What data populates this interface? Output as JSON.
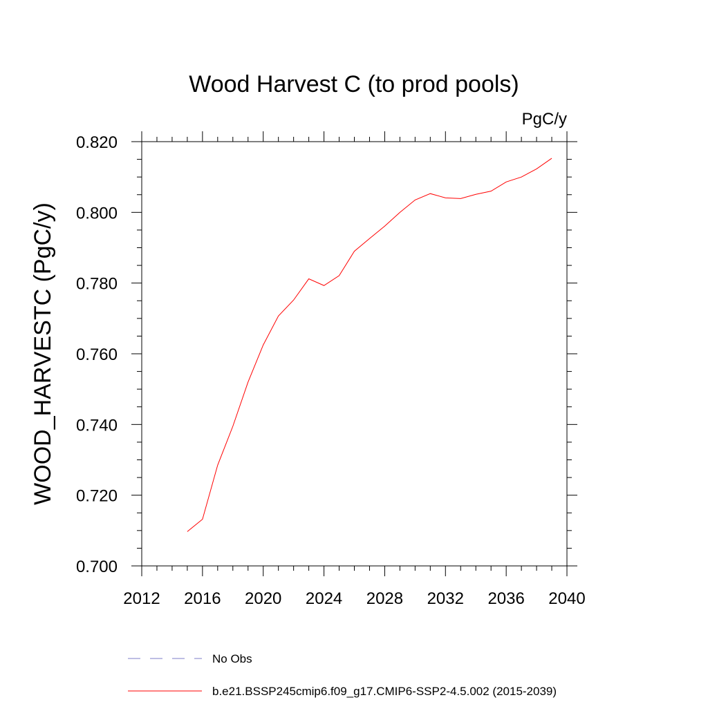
{
  "chart_data": {
    "type": "line",
    "title": "Wood Harvest C (to prod pools)",
    "units": "PgC/y",
    "ylabel": "WOOD_HARVESTC  (PgC/y)",
    "xlabel": "",
    "xlim": [
      2012,
      2040
    ],
    "ylim": [
      0.7,
      0.82
    ],
    "x_ticks": [
      "2012",
      "2016",
      "2020",
      "2024",
      "2028",
      "2032",
      "2036",
      "2040"
    ],
    "y_ticks": [
      "0.700",
      "0.720",
      "0.740",
      "0.760",
      "0.780",
      "0.800",
      "0.820"
    ],
    "grid": false,
    "series": [
      {
        "name": "b.e21.BSSP245cmip6.f09_g17.CMIP6-SSP2-4.5.002 (2015-2039)",
        "color": "#ff0000",
        "x": [
          2015,
          2016,
          2017,
          2018,
          2019,
          2020,
          2021,
          2022,
          2023,
          2024,
          2025,
          2026,
          2027,
          2028,
          2029,
          2030,
          2031,
          2032,
          2033,
          2034,
          2035,
          2036,
          2037,
          2038,
          2039
        ],
        "y": [
          0.7097,
          0.7132,
          0.7285,
          0.7395,
          0.752,
          0.7625,
          0.7707,
          0.7752,
          0.7812,
          0.7793,
          0.7821,
          0.789,
          0.7926,
          0.7961,
          0.8,
          0.8035,
          0.8053,
          0.8041,
          0.8039,
          0.8051,
          0.806,
          0.8086,
          0.81,
          0.8123,
          0.8153
        ]
      }
    ],
    "legend": {
      "placement": "bottom",
      "entries": [
        {
          "label": "No Obs",
          "color": "#7d7dc8",
          "style": "dashed"
        },
        {
          "label": "b.e21.BSSP245cmip6.f09_g17.CMIP6-SSP2-4.5.002 (2015-2039)",
          "color": "#ff0000",
          "style": "solid"
        }
      ]
    }
  }
}
